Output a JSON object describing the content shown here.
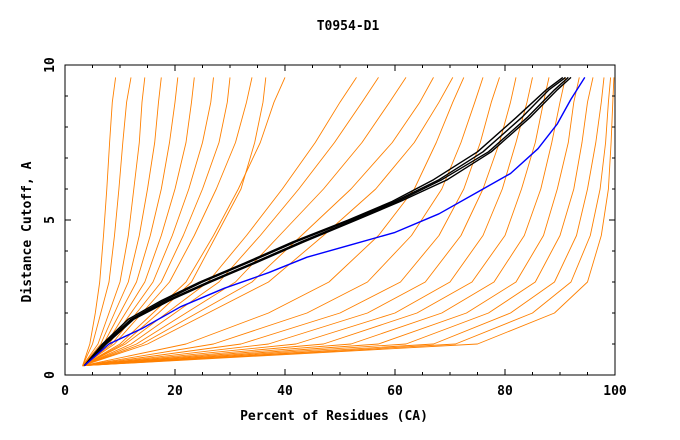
{
  "chart_data": {
    "type": "line",
    "title": "T0954-D1",
    "xlabel": "Percent of Residues (CA)",
    "ylabel": "Distance Cutoff, A",
    "xlim": [
      0,
      100
    ],
    "ylim": [
      0,
      10
    ],
    "x_ticks": [
      "0",
      "20",
      "40",
      "60",
      "80",
      "100"
    ],
    "y_ticks": [
      "0",
      "5",
      "10"
    ],
    "grid": false,
    "colors": {
      "orange": "#ff8000",
      "black": "#000000",
      "blue": "#0000ff"
    },
    "series": [
      {
        "group": "orange",
        "x": [
          3.2,
          4.5,
          5.5,
          6.3,
          7.0,
          7.6,
          8.1,
          8.6,
          9.2
        ],
        "y": [
          0.3,
          1.0,
          2.0,
          3.0,
          4.5,
          6.0,
          7.5,
          8.8,
          9.6
        ]
      },
      {
        "group": "orange",
        "x": [
          3.2,
          5.0,
          6.5,
          8.0,
          9.0,
          9.8,
          10.5,
          11.2,
          12.0
        ],
        "y": [
          0.3,
          1.0,
          2.0,
          3.0,
          4.5,
          6.0,
          7.5,
          8.8,
          9.6
        ]
      },
      {
        "group": "orange",
        "x": [
          3.2,
          6.0,
          8.0,
          10.0,
          11.5,
          12.5,
          13.5,
          14.0,
          14.5
        ],
        "y": [
          0.3,
          1.0,
          2.0,
          3.0,
          4.5,
          6.0,
          7.5,
          8.8,
          9.6
        ]
      },
      {
        "group": "orange",
        "x": [
          3.2,
          6.5,
          9.0,
          11.5,
          13.5,
          15.0,
          16.3,
          17.0,
          17.5
        ],
        "y": [
          0.3,
          1.0,
          2.0,
          3.0,
          4.5,
          6.0,
          7.5,
          8.8,
          9.6
        ]
      },
      {
        "group": "orange",
        "x": [
          3.2,
          7.0,
          10.0,
          13.0,
          15.5,
          17.5,
          19.0,
          20.0,
          20.5
        ],
        "y": [
          0.3,
          1.0,
          2.0,
          3.0,
          4.5,
          6.0,
          7.5,
          8.8,
          9.6
        ]
      },
      {
        "group": "orange",
        "x": [
          3.2,
          7.5,
          11.0,
          14.5,
          17.5,
          20.0,
          22.0,
          23.0,
          23.5
        ],
        "y": [
          0.3,
          1.0,
          2.0,
          3.0,
          4.5,
          6.0,
          7.5,
          8.8,
          9.6
        ]
      },
      {
        "group": "orange",
        "x": [
          3.2,
          8.0,
          12.0,
          16.0,
          19.5,
          22.5,
          25.0,
          26.5,
          27.0
        ],
        "y": [
          0.3,
          1.0,
          2.0,
          3.0,
          4.5,
          6.0,
          7.5,
          8.8,
          9.6
        ]
      },
      {
        "group": "orange",
        "x": [
          3.2,
          8.5,
          13.0,
          17.5,
          21.5,
          25.0,
          28.0,
          29.5,
          30.0
        ],
        "y": [
          0.3,
          1.0,
          2.0,
          3.0,
          4.5,
          6.0,
          7.5,
          8.8,
          9.6
        ]
      },
      {
        "group": "orange",
        "x": [
          3.2,
          9.0,
          14.0,
          19.0,
          23.5,
          27.5,
          31.0,
          33.0,
          34.0
        ],
        "y": [
          0.3,
          1.0,
          2.0,
          3.0,
          4.5,
          6.0,
          7.5,
          8.8,
          9.6
        ]
      },
      {
        "group": "orange",
        "x": [
          3.2,
          10.0,
          16.0,
          22.0,
          27.0,
          31.5,
          35.5,
          38.0,
          40.0
        ],
        "y": [
          0.3,
          1.0,
          2.0,
          3.0,
          4.5,
          6.0,
          7.5,
          8.8,
          9.6
        ]
      },
      {
        "group": "orange",
        "x": [
          3.2,
          10.5,
          17.0,
          23.0,
          27.5,
          32.0,
          34.5,
          36.0,
          36.5
        ],
        "y": [
          0.3,
          1.0,
          2.0,
          3.0,
          4.5,
          6.0,
          7.5,
          8.8,
          9.6
        ]
      },
      {
        "group": "orange",
        "x": [
          3.2,
          11.0,
          18.5,
          26.0,
          33.0,
          39.5,
          45.5,
          50.0,
          53.0
        ],
        "y": [
          0.3,
          1.0,
          2.0,
          3.0,
          4.5,
          6.0,
          7.5,
          8.8,
          9.6
        ]
      },
      {
        "group": "orange",
        "x": [
          3.2,
          12.0,
          20.0,
          28.0,
          35.5,
          42.5,
          49.0,
          54.0,
          57.0
        ],
        "y": [
          0.3,
          1.0,
          2.0,
          3.0,
          4.5,
          6.0,
          7.5,
          8.8,
          9.6
        ]
      },
      {
        "group": "orange",
        "x": [
          3.2,
          13.0,
          22.0,
          31.0,
          39.0,
          47.0,
          54.0,
          59.0,
          62.0
        ],
        "y": [
          0.3,
          1.0,
          2.0,
          3.0,
          4.5,
          6.0,
          7.5,
          8.8,
          9.6
        ]
      },
      {
        "group": "orange",
        "x": [
          3.2,
          14.0,
          24.0,
          34.0,
          43.0,
          52.0,
          59.5,
          64.5,
          67.0
        ],
        "y": [
          0.3,
          1.0,
          2.0,
          3.0,
          4.5,
          6.0,
          7.5,
          8.8,
          9.6
        ]
      },
      {
        "group": "orange",
        "x": [
          3.2,
          15.0,
          26.0,
          37.0,
          47.0,
          56.5,
          63.5,
          68.0,
          70.5
        ],
        "y": [
          0.3,
          1.0,
          2.0,
          3.0,
          4.5,
          6.0,
          7.5,
          8.8,
          9.6
        ]
      },
      {
        "group": "orange",
        "x": [
          3.2,
          22.0,
          37.0,
          48.0,
          57.0,
          63.5,
          67.5,
          70.5,
          72.5
        ],
        "y": [
          0.3,
          1.0,
          2.0,
          3.0,
          4.5,
          6.0,
          7.5,
          8.8,
          9.6
        ]
      },
      {
        "group": "orange",
        "x": [
          3.2,
          27.0,
          44.0,
          55.0,
          63.0,
          68.5,
          72.0,
          74.5,
          76.0
        ],
        "y": [
          0.3,
          1.0,
          2.0,
          3.0,
          4.5,
          6.0,
          7.5,
          8.8,
          9.6
        ]
      },
      {
        "group": "orange",
        "x": [
          3.2,
          32.0,
          50.0,
          61.0,
          68.0,
          72.5,
          75.5,
          77.5,
          79.0
        ],
        "y": [
          0.3,
          1.0,
          2.0,
          3.0,
          4.5,
          6.0,
          7.5,
          8.8,
          9.6
        ]
      },
      {
        "group": "orange",
        "x": [
          3.2,
          37.0,
          55.0,
          65.5,
          72.0,
          76.0,
          79.0,
          81.0,
          82.0
        ],
        "y": [
          0.3,
          1.0,
          2.0,
          3.0,
          4.5,
          6.0,
          7.5,
          8.8,
          9.6
        ]
      },
      {
        "group": "orange",
        "x": [
          3.2,
          42.0,
          60.0,
          70.0,
          76.0,
          79.5,
          82.0,
          84.0,
          85.0
        ],
        "y": [
          0.3,
          1.0,
          2.0,
          3.0,
          4.5,
          6.0,
          7.5,
          8.8,
          9.6
        ]
      },
      {
        "group": "orange",
        "x": [
          3.2,
          47.0,
          64.0,
          74.0,
          80.0,
          83.0,
          85.5,
          87.0,
          88.0
        ],
        "y": [
          0.3,
          1.0,
          2.0,
          3.0,
          4.5,
          6.0,
          7.5,
          8.8,
          9.6
        ]
      },
      {
        "group": "orange",
        "x": [
          3.2,
          52.0,
          68.5,
          78.0,
          83.5,
          86.5,
          88.5,
          90.0,
          91.0
        ],
        "y": [
          0.3,
          1.0,
          2.0,
          3.0,
          4.5,
          6.0,
          7.5,
          8.8,
          9.6
        ]
      },
      {
        "group": "orange",
        "x": [
          3.2,
          57.0,
          73.0,
          82.0,
          87.0,
          89.5,
          91.5,
          92.5,
          93.5
        ],
        "y": [
          0.3,
          1.0,
          2.0,
          3.0,
          4.5,
          6.0,
          7.5,
          8.8,
          9.6
        ]
      },
      {
        "group": "orange",
        "x": [
          3.2,
          62.0,
          77.0,
          85.5,
          90.0,
          92.5,
          94.0,
          95.0,
          96.0
        ],
        "y": [
          0.3,
          1.0,
          2.0,
          3.0,
          4.5,
          6.0,
          7.5,
          8.8,
          9.6
        ]
      },
      {
        "group": "orange",
        "x": [
          3.2,
          67.0,
          81.0,
          89.0,
          93.0,
          95.0,
          96.5,
          97.5,
          98.0
        ],
        "y": [
          0.3,
          1.0,
          2.0,
          3.0,
          4.5,
          6.0,
          7.5,
          8.8,
          9.6
        ]
      },
      {
        "group": "orange",
        "x": [
          3.2,
          71.0,
          85.0,
          92.0,
          95.5,
          97.3,
          98.3,
          98.8,
          99.2
        ],
        "y": [
          0.3,
          1.0,
          2.0,
          3.0,
          4.5,
          6.0,
          7.5,
          8.8,
          9.6
        ]
      },
      {
        "group": "orange",
        "x": [
          3.2,
          75.0,
          89.0,
          95.0,
          97.5,
          98.8,
          99.3,
          99.6,
          99.8
        ],
        "y": [
          0.3,
          1.0,
          2.0,
          3.0,
          4.5,
          6.0,
          7.5,
          8.8,
          9.6
        ]
      },
      {
        "group": "black",
        "x": [
          3.5,
          7.0,
          12.0,
          18.0,
          25.0,
          33.0,
          42.0,
          52.0,
          60.0,
          68.0,
          76.0,
          83.0,
          88.0,
          91.0
        ],
        "y": [
          0.3,
          1.0,
          1.8,
          2.4,
          3.0,
          3.6,
          4.3,
          5.0,
          5.6,
          6.3,
          7.2,
          8.3,
          9.2,
          9.6
        ]
      },
      {
        "group": "black",
        "x": [
          3.5,
          7.5,
          12.5,
          19.0,
          26.5,
          34.5,
          43.5,
          53.0,
          61.0,
          69.5,
          77.5,
          84.5,
          89.5,
          92.0
        ],
        "y": [
          0.3,
          1.0,
          1.8,
          2.4,
          3.0,
          3.6,
          4.3,
          5.0,
          5.6,
          6.3,
          7.2,
          8.3,
          9.2,
          9.6
        ]
      },
      {
        "group": "black",
        "x": [
          3.5,
          7.3,
          12.3,
          18.5,
          26.0,
          34.0,
          43.0,
          52.5,
          60.5,
          68.5,
          77.0,
          84.0,
          89.0,
          91.5
        ],
        "y": [
          0.3,
          1.0,
          1.8,
          2.4,
          3.0,
          3.6,
          4.3,
          5.0,
          5.6,
          6.3,
          7.2,
          8.3,
          9.2,
          9.6
        ]
      },
      {
        "group": "black",
        "x": [
          3.5,
          6.8,
          11.5,
          17.5,
          24.5,
          32.5,
          41.5,
          51.5,
          59.5,
          67.0,
          75.0,
          82.0,
          87.5,
          90.5
        ],
        "y": [
          0.3,
          1.0,
          1.8,
          2.4,
          3.0,
          3.6,
          4.3,
          5.0,
          5.6,
          6.3,
          7.2,
          8.3,
          9.2,
          9.6
        ]
      },
      {
        "group": "blue",
        "x": [
          3.5,
          8.0,
          14.0,
          21.0,
          29.0,
          37.0,
          44.0,
          52.0,
          60.0,
          68.0,
          75.0,
          81.0,
          86.0,
          89.5,
          92.0,
          94.5
        ],
        "y": [
          0.3,
          1.0,
          1.5,
          2.2,
          2.8,
          3.3,
          3.8,
          4.2,
          4.6,
          5.2,
          5.9,
          6.5,
          7.3,
          8.1,
          8.9,
          9.6
        ]
      }
    ]
  }
}
